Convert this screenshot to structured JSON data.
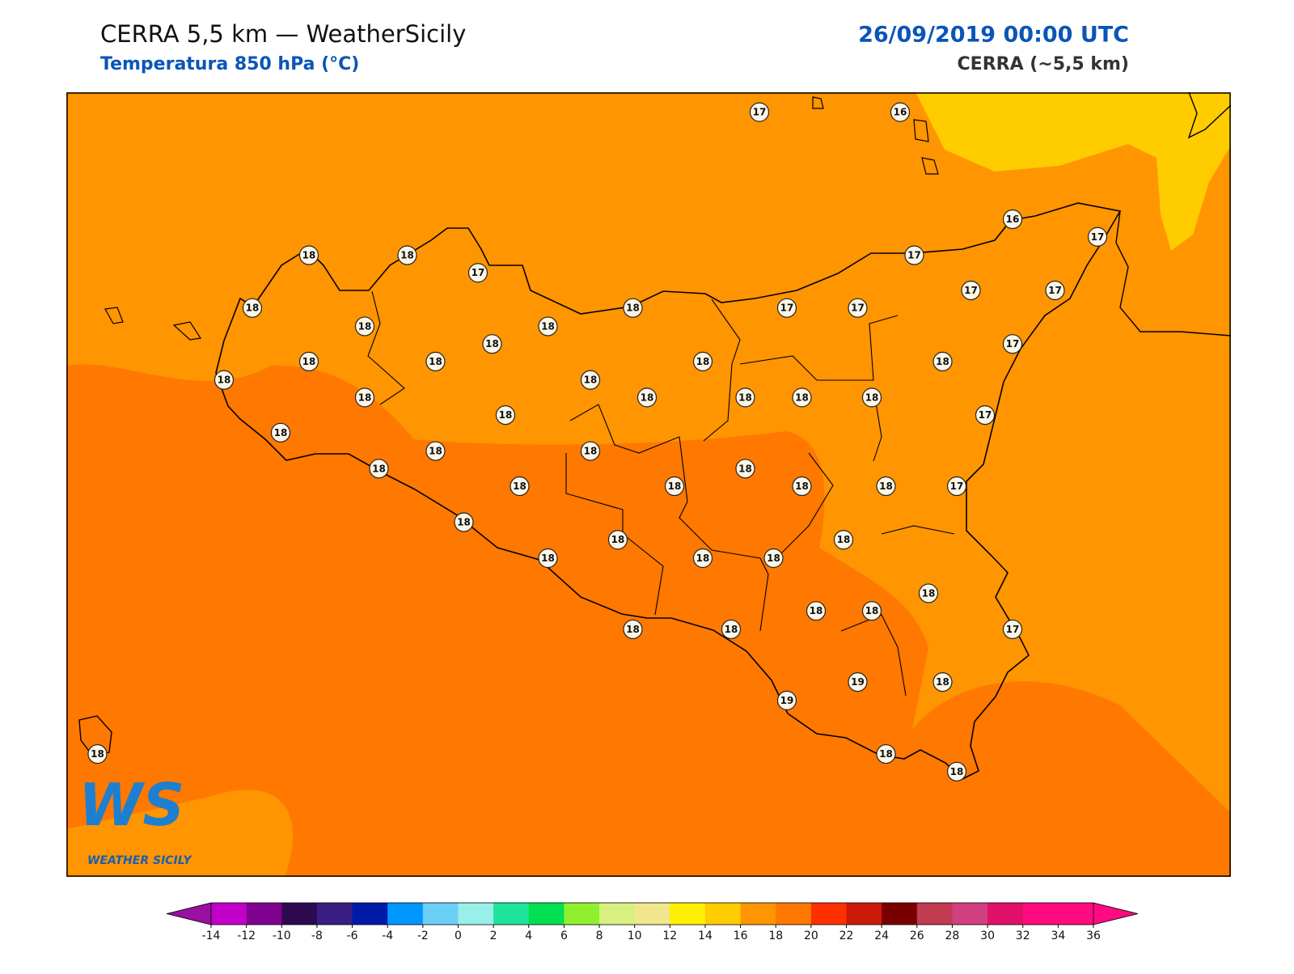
{
  "header": {
    "title": "CERRA 5,5 km — WeatherSicily",
    "subtitle": "Temperatura 850 hPa (°C)",
    "datetime": "26/09/2019 00:00 UTC",
    "model": "CERRA (~5,5 km)"
  },
  "logo": {
    "mark": "WS",
    "text": "WEATHER SICILY"
  },
  "stations": [
    17,
    16,
    16,
    17,
    18,
    18,
    17,
    17,
    18,
    18,
    18,
    18,
    17,
    17,
    17,
    17,
    18,
    18,
    18,
    18,
    17,
    18,
    18,
    18,
    18,
    18,
    18,
    18,
    18,
    17,
    18,
    18,
    18,
    18,
    18,
    18,
    18,
    18,
    18,
    18,
    17,
    18,
    18,
    18,
    18,
    18,
    18,
    18,
    18,
    18,
    18,
    18,
    17,
    19,
    18,
    19,
    18,
    18,
    18
  ],
  "colorbar": {
    "ticks": [
      -14,
      -12,
      -10,
      -8,
      -6,
      -4,
      -2,
      0,
      2,
      4,
      6,
      8,
      10,
      12,
      14,
      16,
      18,
      20,
      22,
      24,
      26,
      28,
      30,
      32,
      34,
      36
    ],
    "colors": [
      "#c000c8",
      "#800090",
      "#2e0a50",
      "#3a1e82",
      "#001aa8",
      "#0096ff",
      "#6ccff6",
      "#98f0e8",
      "#1de49a",
      "#00e050",
      "#90f030",
      "#d8f080",
      "#f0e68c",
      "#fff000",
      "#ffcc00",
      "#ff9500",
      "#ff7800",
      "#ff3000",
      "#cc1a0a",
      "#7a0000",
      "#c03a50",
      "#d04080",
      "#e0106a",
      "#ff0a80",
      "#ff0a80"
    ],
    "under": "#9a10a0",
    "over": "#ff0a80"
  }
}
